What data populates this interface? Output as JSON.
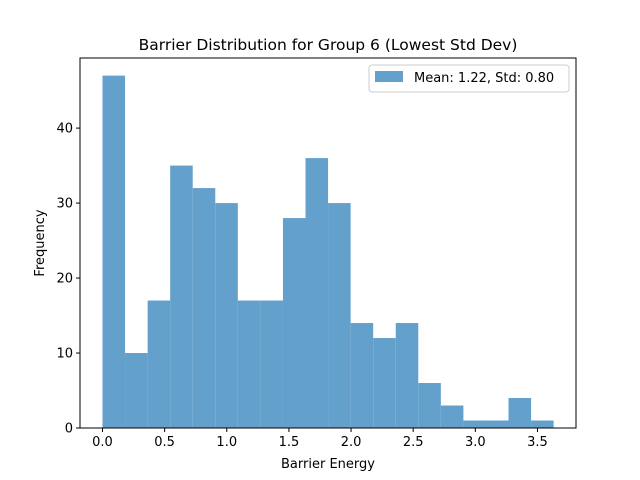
{
  "chart_data": {
    "type": "bar",
    "title": "Barrier Distribution for Group 6 (Lowest Std Dev)",
    "xlabel": "Barrier Energy",
    "ylabel": "Frequency",
    "xlim": [
      -0.181,
      3.81
    ],
    "ylim": [
      0,
      49.35
    ],
    "xticks": [
      0.0,
      0.5,
      1.0,
      1.5,
      2.0,
      2.5,
      3.0,
      3.5
    ],
    "xtick_labels": [
      "0.0",
      "0.5",
      "1.0",
      "1.5",
      "2.0",
      "2.5",
      "3.0",
      "3.5"
    ],
    "yticks": [
      0,
      10,
      20,
      30,
      40
    ],
    "ytick_labels": [
      "0",
      "10",
      "20",
      "30",
      "40"
    ],
    "bin_edges": [
      0.0,
      0.1815,
      0.363,
      0.5445,
      0.726,
      0.9075,
      1.089,
      1.2705,
      1.452,
      1.6335,
      1.815,
      1.9965,
      2.178,
      2.3595,
      2.541,
      2.7225,
      2.904,
      3.0855,
      3.267,
      3.4485,
      3.63
    ],
    "values": [
      47,
      10,
      17,
      35,
      32,
      30,
      17,
      17,
      28,
      36,
      30,
      14,
      12,
      14,
      6,
      3,
      1,
      1,
      4,
      1
    ],
    "series": [
      {
        "name": "Mean: 1.22, Std: 0.80",
        "color": "#4c8fc4"
      }
    ],
    "bar_color": "#64a0cc",
    "grid": false,
    "legend_position": "upper-right"
  }
}
